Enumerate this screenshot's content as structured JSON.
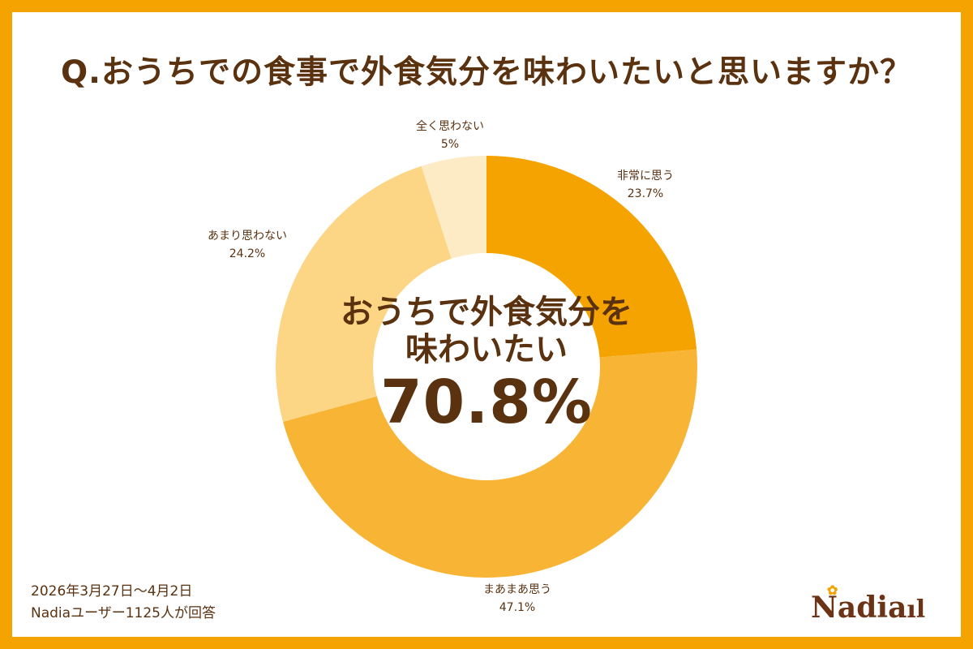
{
  "title": "Q.おうちでの食事で外食気分を味わいたいと思いますか？",
  "center": {
    "line1": "おうちで外食気分を",
    "line2": "味わいたい",
    "value": "70.8%"
  },
  "labels": [
    {
      "name": "非常に思う",
      "pct": "23.7%"
    },
    {
      "name": "まあまあ思う",
      "pct": "47.1%"
    },
    {
      "name": "あまり思わない",
      "pct": "24.2%"
    },
    {
      "name": "全く思わない",
      "pct": "5%"
    }
  ],
  "footer": {
    "period": "2026年3月27日～4月2日",
    "respondents": "Nadiaユーザー1125人が回答"
  },
  "logo": {
    "text": "Nadia",
    "cutlery": "ıl"
  },
  "colors": {
    "border": "#F5A300",
    "text": "#5A3210",
    "slice1": "#F5A300",
    "slice2": "#F8B535",
    "slice3": "#FCD585",
    "slice4": "#FDEBC6"
  },
  "chart_data": {
    "type": "pie",
    "subtype": "donut",
    "title": "Q.おうちでの食事で外食気分を味わいたいと思いますか？",
    "categories": [
      "非常に思う",
      "まあまあ思う",
      "あまり思わない",
      "全く思わない"
    ],
    "values": [
      23.7,
      47.1,
      24.2,
      5.0
    ],
    "colors": [
      "#F5A300",
      "#F8B535",
      "#FCD585",
      "#FDEBC6"
    ],
    "center_annotation": "おうちで外食気分を味わいたい 70.8%",
    "start_angle": "12 o'clock, clockwise",
    "legend": "none (direct labels)"
  }
}
